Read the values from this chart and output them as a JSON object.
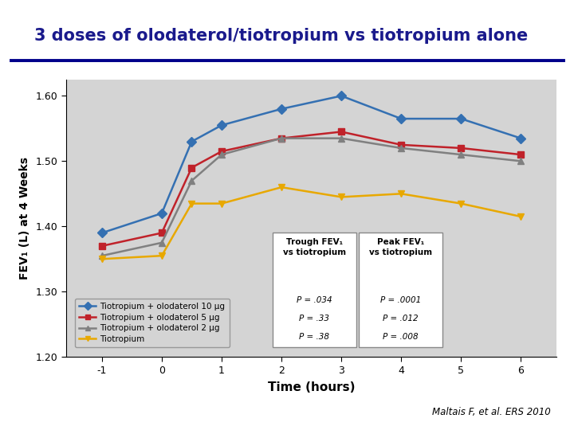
{
  "title": "3 doses of olodaterol/tiotropium vs tiotropium alone",
  "title_color": "#1a1a8c",
  "title_fontsize": 15,
  "xlabel": "Time (hours)",
  "ylabel": "FEV₁ (L) at 4 Weeks",
  "citation": "Maltais F, et al. ERS 2010",
  "x": [
    -1,
    0,
    0.5,
    1,
    2,
    3,
    4,
    5,
    6
  ],
  "blue_10ug": [
    1.39,
    1.42,
    1.53,
    1.555,
    1.58,
    1.6,
    1.565,
    1.565,
    1.535
  ],
  "red_5ug": [
    1.37,
    1.39,
    1.49,
    1.515,
    1.535,
    1.545,
    1.525,
    1.52,
    1.51
  ],
  "gray_2ug": [
    1.355,
    1.375,
    1.47,
    1.51,
    1.535,
    1.535,
    1.52,
    1.51,
    1.5
  ],
  "yellow_tio": [
    1.35,
    1.355,
    1.435,
    1.435,
    1.46,
    1.445,
    1.45,
    1.435,
    1.415
  ],
  "blue_color": "#3470b2",
  "red_color": "#c0222a",
  "gray_color": "#808080",
  "yellow_color": "#e8a800",
  "plot_bg_color": "#d4d4d4",
  "ylim": [
    1.2,
    1.625
  ],
  "yticks": [
    1.2,
    1.3,
    1.4,
    1.5,
    1.6
  ],
  "xticks": [
    -1,
    0,
    1,
    2,
    3,
    4,
    5,
    6
  ],
  "legend_labels": [
    "Tiotropium + olodaterol 10 μg",
    "Tiotropium + olodaterol 5 μg",
    "Tiotropium + olodaterol 2 μg",
    "Tiotropium"
  ],
  "trough_p": [
    "P = .034",
    "P = .33",
    "P = .38"
  ],
  "peak_p": [
    "P = .0001",
    "P = .012",
    "P = .008"
  ],
  "separator_color": "#00008b",
  "lw": 1.8,
  "markersize": 6
}
